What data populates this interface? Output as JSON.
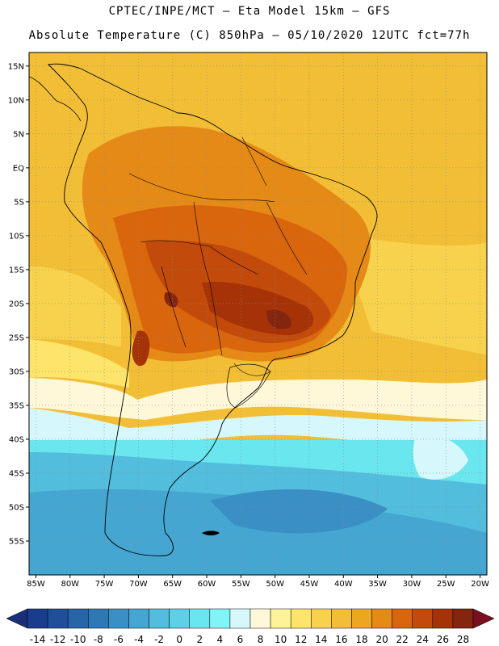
{
  "header": {
    "line1": "CPTEC/INPE/MCT –  Eta Model 15km – GFS",
    "line2": "Absolute Temperature (C) 850hPa – 05/10/2020 12UTC fct=77h"
  },
  "map": {
    "lon_range": [
      -86,
      -19
    ],
    "lat_range": [
      -60,
      17
    ],
    "lat_labels": [
      {
        "lat": 15,
        "label": "15N"
      },
      {
        "lat": 10,
        "label": "10N"
      },
      {
        "lat": 5,
        "label": "5N"
      },
      {
        "lat": 0,
        "label": "EQ"
      },
      {
        "lat": -5,
        "label": "5S"
      },
      {
        "lat": -10,
        "label": "10S"
      },
      {
        "lat": -15,
        "label": "15S"
      },
      {
        "lat": -20,
        "label": "20S"
      },
      {
        "lat": -25,
        "label": "25S"
      },
      {
        "lat": -30,
        "label": "30S"
      },
      {
        "lat": -35,
        "label": "35S"
      },
      {
        "lat": -40,
        "label": "40S"
      },
      {
        "lat": -45,
        "label": "45S"
      },
      {
        "lat": -50,
        "label": "50S"
      },
      {
        "lat": -55,
        "label": "55S"
      }
    ],
    "lon_labels": [
      {
        "lon": -85,
        "label": "85W"
      },
      {
        "lon": -80,
        "label": "80W"
      },
      {
        "lon": -75,
        "label": "75W"
      },
      {
        "lon": -70,
        "label": "70W"
      },
      {
        "lon": -65,
        "label": "65W"
      },
      {
        "lon": -60,
        "label": "60W"
      },
      {
        "lon": -55,
        "label": "55W"
      },
      {
        "lon": -50,
        "label": "50W"
      },
      {
        "lon": -45,
        "label": "45W"
      },
      {
        "lon": -40,
        "label": "40W"
      },
      {
        "lon": -35,
        "label": "35W"
      },
      {
        "lon": -30,
        "label": "30W"
      },
      {
        "lon": -25,
        "label": "25W"
      },
      {
        "lon": -20,
        "label": "20W"
      }
    ]
  },
  "colorbar": {
    "labels": [
      "-14",
      "-12",
      "-10",
      "-8",
      "-6",
      "-4",
      "-2",
      "0",
      "2",
      "4",
      "6",
      "8",
      "10",
      "12",
      "14",
      "16",
      "18",
      "20",
      "22",
      "24",
      "26",
      "28"
    ],
    "colors": [
      "#1a3c8c",
      "#1f4e9a",
      "#2864a8",
      "#2f78b6",
      "#3a8fc4",
      "#46a6d2",
      "#52bddd",
      "#5dd0e6",
      "#6ae6ef",
      "#7ff5f7",
      "#d6f7fb",
      "#fff8d8",
      "#fff39a",
      "#fde46a",
      "#f8d24c",
      "#f2be36",
      "#eda621",
      "#e58a16",
      "#d9650d",
      "#c24a0a",
      "#a63208",
      "#842510"
    ],
    "end_low_color": "#1b2f78",
    "end_high_color": "#7a0f1f"
  }
}
